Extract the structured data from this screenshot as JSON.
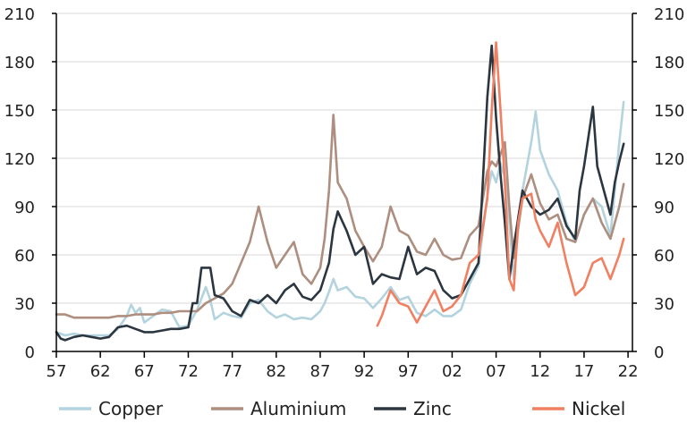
{
  "chart_data": {
    "type": "line",
    "title": "",
    "xlabel": "",
    "ylabel": "",
    "xlim": [
      1957,
      2022.5
    ],
    "ylim": [
      0,
      210
    ],
    "x_ticks": [
      "57",
      "62",
      "67",
      "72",
      "77",
      "82",
      "87",
      "92",
      "97",
      "02",
      "07",
      "12",
      "17",
      "22"
    ],
    "x_tick_values": [
      1957,
      1962,
      1967,
      1972,
      1977,
      1982,
      1987,
      1992,
      1997,
      2002,
      2007,
      2012,
      2017,
      2022
    ],
    "y_ticks": [
      "0",
      "30",
      "60",
      "90",
      "120",
      "150",
      "180",
      "210"
    ],
    "y_tick_values": [
      0,
      30,
      60,
      90,
      120,
      150,
      180,
      210
    ],
    "grid": "horizontal",
    "legend": "bottom",
    "series": [
      {
        "name": "Copper",
        "color": "#b3d3df",
        "points": [
          [
            1957,
            12
          ],
          [
            1958,
            10
          ],
          [
            1959,
            11
          ],
          [
            1960,
            10
          ],
          [
            1961,
            10
          ],
          [
            1962,
            10
          ],
          [
            1963,
            10
          ],
          [
            1964,
            14
          ],
          [
            1965,
            22
          ],
          [
            1965.5,
            29
          ],
          [
            1966,
            24
          ],
          [
            1966.5,
            27
          ],
          [
            1967,
            18
          ],
          [
            1968,
            22
          ],
          [
            1969,
            26
          ],
          [
            1970,
            25
          ],
          [
            1971,
            15
          ],
          [
            1972,
            16
          ],
          [
            1973,
            26
          ],
          [
            1974,
            40
          ],
          [
            1974.5,
            32
          ],
          [
            1975,
            20
          ],
          [
            1976,
            24
          ],
          [
            1977,
            22
          ],
          [
            1978,
            21
          ],
          [
            1979,
            30
          ],
          [
            1980,
            32
          ],
          [
            1981,
            25
          ],
          [
            1982,
            21
          ],
          [
            1983,
            23
          ],
          [
            1984,
            20
          ],
          [
            1985,
            21
          ],
          [
            1986,
            20
          ],
          [
            1987,
            25
          ],
          [
            1987.5,
            30
          ],
          [
            1988,
            37
          ],
          [
            1988.5,
            45
          ],
          [
            1989,
            38
          ],
          [
            1990,
            40
          ],
          [
            1991,
            34
          ],
          [
            1992,
            33
          ],
          [
            1993,
            27
          ],
          [
            1994,
            33
          ],
          [
            1995,
            40
          ],
          [
            1996,
            32
          ],
          [
            1997,
            34
          ],
          [
            1998,
            24
          ],
          [
            1999,
            22
          ],
          [
            2000,
            26
          ],
          [
            2001,
            22
          ],
          [
            2002,
            22
          ],
          [
            2003,
            26
          ],
          [
            2004,
            42
          ],
          [
            2005,
            53
          ],
          [
            2006,
            97
          ],
          [
            2006.5,
            112
          ],
          [
            2007,
            105
          ],
          [
            2007.5,
            117
          ],
          [
            2008,
            108
          ],
          [
            2008.5,
            80
          ],
          [
            2009,
            45
          ],
          [
            2009.5,
            75
          ],
          [
            2010,
            100
          ],
          [
            2011,
            130
          ],
          [
            2011.5,
            149
          ],
          [
            2012,
            125
          ],
          [
            2013,
            110
          ],
          [
            2014,
            100
          ],
          [
            2015,
            80
          ],
          [
            2016,
            68
          ],
          [
            2017,
            85
          ],
          [
            2018,
            95
          ],
          [
            2019,
            90
          ],
          [
            2020,
            72
          ],
          [
            2020.5,
            100
          ],
          [
            2021,
            130
          ],
          [
            2021.5,
            155
          ]
        ]
      },
      {
        "name": "Aluminium",
        "color": "#ad8e7f",
        "points": [
          [
            1957,
            23
          ],
          [
            1958,
            23
          ],
          [
            1959,
            21
          ],
          [
            1960,
            21
          ],
          [
            1961,
            21
          ],
          [
            1962,
            21
          ],
          [
            1963,
            21
          ],
          [
            1964,
            22
          ],
          [
            1965,
            22
          ],
          [
            1966,
            23
          ],
          [
            1967,
            23
          ],
          [
            1968,
            23
          ],
          [
            1969,
            24
          ],
          [
            1970,
            24
          ],
          [
            1971,
            25
          ],
          [
            1972,
            25
          ],
          [
            1973,
            25
          ],
          [
            1974,
            30
          ],
          [
            1975,
            33
          ],
          [
            1976,
            36
          ],
          [
            1977,
            42
          ],
          [
            1978,
            55
          ],
          [
            1979,
            68
          ],
          [
            1980,
            90
          ],
          [
            1981,
            68
          ],
          [
            1982,
            52
          ],
          [
            1983,
            60
          ],
          [
            1984,
            68
          ],
          [
            1985,
            48
          ],
          [
            1986,
            42
          ],
          [
            1987,
            52
          ],
          [
            1987.5,
            70
          ],
          [
            1988,
            100
          ],
          [
            1988.5,
            147
          ],
          [
            1989,
            105
          ],
          [
            1990,
            95
          ],
          [
            1991,
            75
          ],
          [
            1992,
            65
          ],
          [
            1993,
            56
          ],
          [
            1994,
            65
          ],
          [
            1995,
            90
          ],
          [
            1996,
            75
          ],
          [
            1997,
            72
          ],
          [
            1998,
            62
          ],
          [
            1999,
            60
          ],
          [
            2000,
            70
          ],
          [
            2001,
            60
          ],
          [
            2002,
            57
          ],
          [
            2003,
            58
          ],
          [
            2004,
            72
          ],
          [
            2005,
            78
          ],
          [
            2006,
            112
          ],
          [
            2006.5,
            118
          ],
          [
            2007,
            115
          ],
          [
            2008,
            130
          ],
          [
            2008.5,
            90
          ],
          [
            2009,
            58
          ],
          [
            2010,
            95
          ],
          [
            2011,
            110
          ],
          [
            2012,
            92
          ],
          [
            2013,
            82
          ],
          [
            2014,
            85
          ],
          [
            2015,
            70
          ],
          [
            2016,
            68
          ],
          [
            2017,
            85
          ],
          [
            2018,
            95
          ],
          [
            2019,
            80
          ],
          [
            2020,
            70
          ],
          [
            2021,
            90
          ],
          [
            2021.5,
            104
          ]
        ]
      },
      {
        "name": "Zinc",
        "color": "#2b3640",
        "points": [
          [
            1957,
            12
          ],
          [
            1957.5,
            8
          ],
          [
            1958,
            7
          ],
          [
            1959,
            9
          ],
          [
            1960,
            10
          ],
          [
            1961,
            9
          ],
          [
            1962,
            8
          ],
          [
            1963,
            9
          ],
          [
            1964,
            15
          ],
          [
            1965,
            16
          ],
          [
            1966,
            14
          ],
          [
            1967,
            12
          ],
          [
            1968,
            12
          ],
          [
            1969,
            13
          ],
          [
            1970,
            14
          ],
          [
            1971,
            14
          ],
          [
            1972,
            15
          ],
          [
            1972.5,
            30
          ],
          [
            1973,
            30
          ],
          [
            1973.5,
            52
          ],
          [
            1974.5,
            52
          ],
          [
            1975,
            35
          ],
          [
            1976,
            33
          ],
          [
            1977,
            25
          ],
          [
            1978,
            22
          ],
          [
            1979,
            32
          ],
          [
            1980,
            30
          ],
          [
            1981,
            35
          ],
          [
            1982,
            30
          ],
          [
            1983,
            38
          ],
          [
            1984,
            42
          ],
          [
            1985,
            34
          ],
          [
            1986,
            32
          ],
          [
            1987,
            38
          ],
          [
            1988,
            55
          ],
          [
            1988.5,
            76
          ],
          [
            1989,
            87
          ],
          [
            1990,
            75
          ],
          [
            1991,
            60
          ],
          [
            1992,
            65
          ],
          [
            1993,
            42
          ],
          [
            1994,
            48
          ],
          [
            1995,
            46
          ],
          [
            1996,
            45
          ],
          [
            1997,
            65
          ],
          [
            1998,
            48
          ],
          [
            1999,
            52
          ],
          [
            2000,
            50
          ],
          [
            2001,
            38
          ],
          [
            2002,
            33
          ],
          [
            2003,
            35
          ],
          [
            2004,
            45
          ],
          [
            2005,
            55
          ],
          [
            2006,
            158
          ],
          [
            2006.5,
            190
          ],
          [
            2007,
            145
          ],
          [
            2007.5,
            110
          ],
          [
            2008,
            80
          ],
          [
            2008.5,
            45
          ],
          [
            2009,
            65
          ],
          [
            2010,
            100
          ],
          [
            2011,
            90
          ],
          [
            2012,
            85
          ],
          [
            2013,
            88
          ],
          [
            2014,
            95
          ],
          [
            2015,
            78
          ],
          [
            2016,
            70
          ],
          [
            2016.5,
            100
          ],
          [
            2017,
            115
          ],
          [
            2018,
            152
          ],
          [
            2018.5,
            115
          ],
          [
            2019,
            105
          ],
          [
            2020,
            85
          ],
          [
            2020.5,
            105
          ],
          [
            2021,
            118
          ],
          [
            2021.5,
            129
          ]
        ]
      },
      {
        "name": "Nickel",
        "color": "#f08062",
        "points": [
          [
            1993.5,
            16
          ],
          [
            1994,
            22
          ],
          [
            1995,
            38
          ],
          [
            1996,
            30
          ],
          [
            1997,
            28
          ],
          [
            1998,
            18
          ],
          [
            1999,
            28
          ],
          [
            2000,
            38
          ],
          [
            2001,
            25
          ],
          [
            2002,
            28
          ],
          [
            2003,
            35
          ],
          [
            2004,
            55
          ],
          [
            2005,
            60
          ],
          [
            2006,
            95
          ],
          [
            2006.5,
            150
          ],
          [
            2007,
            192
          ],
          [
            2007.5,
            150
          ],
          [
            2008,
            105
          ],
          [
            2008.5,
            45
          ],
          [
            2009,
            38
          ],
          [
            2009.5,
            80
          ],
          [
            2010,
            95
          ],
          [
            2011,
            98
          ],
          [
            2011.5,
            82
          ],
          [
            2012,
            75
          ],
          [
            2013,
            65
          ],
          [
            2014,
            80
          ],
          [
            2015,
            55
          ],
          [
            2016,
            35
          ],
          [
            2017,
            40
          ],
          [
            2018,
            55
          ],
          [
            2019,
            58
          ],
          [
            2020,
            45
          ],
          [
            2021,
            60
          ],
          [
            2021.5,
            70
          ]
        ]
      }
    ]
  }
}
